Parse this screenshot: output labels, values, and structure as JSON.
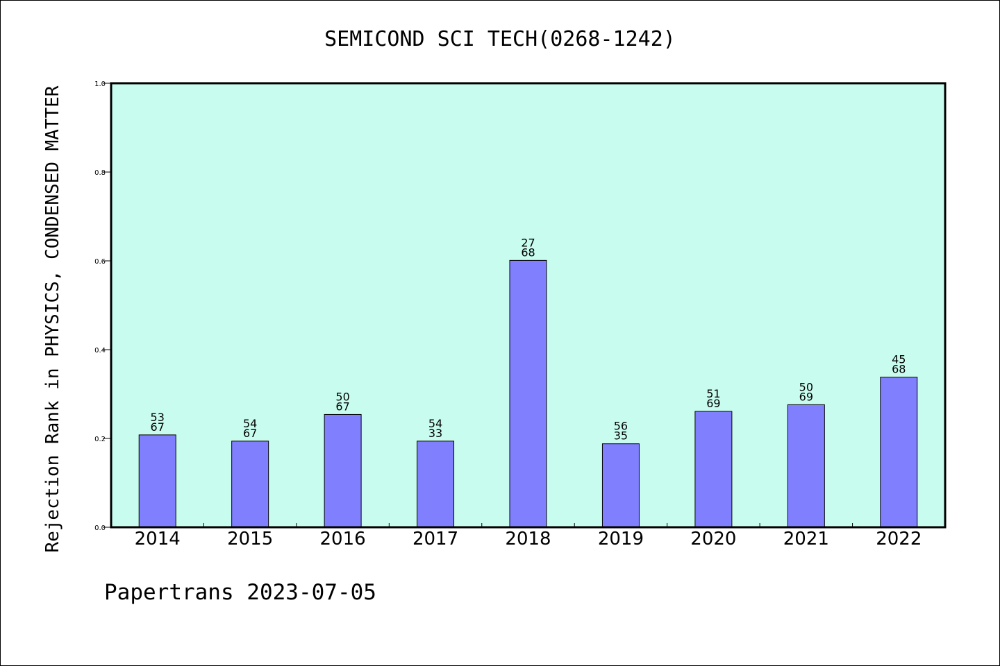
{
  "chart_data": {
    "type": "bar",
    "title": "SEMICOND SCI TECH(0268-1242)",
    "xlabel": "",
    "ylabel": "Rejection Rank in PHYSICS, CONDENSED MATTER",
    "ylim": [
      0.0,
      1.0
    ],
    "yticks": [
      "0.0",
      "0.2",
      "0.4",
      "0.6",
      "0.8",
      "1.0"
    ],
    "categories": [
      "2014",
      "2015",
      "2016",
      "2017",
      "2018",
      "2019",
      "2020",
      "2021",
      "2022"
    ],
    "values": [
      0.208,
      0.194,
      0.254,
      0.194,
      0.601,
      0.188,
      0.261,
      0.276,
      0.338
    ],
    "labels_top": [
      "53",
      "54",
      "50",
      "54",
      "27",
      "56",
      "51",
      "50",
      "45"
    ],
    "labels_bottom": [
      "67",
      "67",
      "67",
      "33",
      "68",
      "35",
      "69",
      "69",
      "68"
    ],
    "grid": false,
    "legend": "none",
    "colors": {
      "bar": "#8080ff",
      "plot_background": "#c8fcee",
      "axis": "#000000"
    }
  },
  "footer": "Papertrans 2023-07-05"
}
